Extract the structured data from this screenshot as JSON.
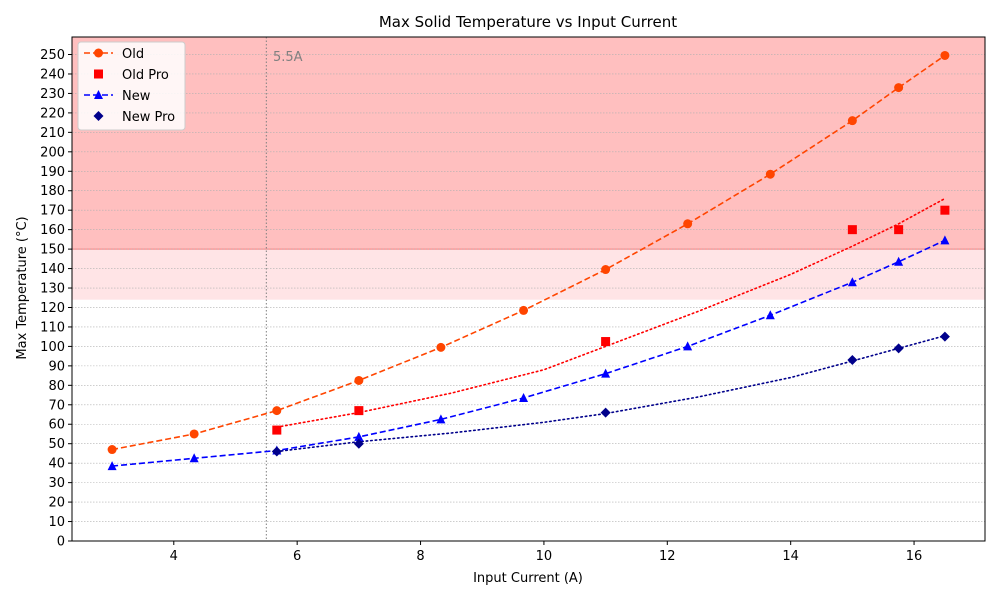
{
  "chart_data": {
    "type": "line",
    "title": "Max Solid Temperature vs Input Current",
    "xlabel": "Input Current (A)",
    "ylabel": "Max Temperature (°C)",
    "xlim": [
      2.35,
      17.15
    ],
    "ylim": [
      0,
      259
    ],
    "x_ticks": [
      4,
      6,
      8,
      10,
      12,
      14,
      16
    ],
    "y_ticks": [
      0,
      10,
      20,
      30,
      40,
      50,
      60,
      70,
      80,
      90,
      100,
      110,
      120,
      130,
      140,
      150,
      160,
      170,
      180,
      190,
      200,
      210,
      220,
      230,
      240,
      250
    ],
    "grid": "horizontal dotted",
    "legend_position": "top-left",
    "bands": [
      {
        "name": "critical-zone",
        "y_from": 150,
        "y_to": 259,
        "color": "#ffbfbf"
      },
      {
        "name": "warning-zone",
        "y_from": 124,
        "y_to": 150,
        "color": "#ffe4e6"
      }
    ],
    "vline": {
      "x": 5.5,
      "label": "5.5A",
      "color": "#808080"
    },
    "series": [
      {
        "name": "Old",
        "color": "#ff4500",
        "marker": "circle",
        "line": "dashed",
        "x": [
          3.0,
          4.33,
          5.67,
          7.0,
          8.33,
          9.67,
          11.0,
          12.33,
          13.67,
          15.0,
          15.75,
          16.5
        ],
        "y": [
          47,
          55,
          67,
          82.5,
          99.5,
          118.5,
          139.5,
          163,
          188.5,
          216,
          233,
          249.5
        ]
      },
      {
        "name": "Old Pro",
        "color": "#ff0000",
        "marker": "square",
        "line": "none",
        "x": [
          5.67,
          7.0,
          11.0,
          15.0,
          15.75,
          16.5
        ],
        "y": [
          57,
          67,
          102.5,
          160,
          160,
          170
        ]
      },
      {
        "name": "New",
        "color": "#0000ff",
        "marker": "triangle",
        "line": "dashed",
        "x": [
          3.0,
          4.33,
          5.67,
          7.0,
          8.33,
          9.67,
          11.0,
          12.33,
          13.67,
          15.0,
          15.75,
          16.5
        ],
        "y": [
          38.5,
          42.5,
          46.5,
          53.5,
          62.5,
          73.5,
          86,
          100,
          116,
          133,
          143.5,
          154.5
        ]
      },
      {
        "name": "New Pro",
        "color": "#00008b",
        "marker": "diamond",
        "line": "none",
        "x": [
          5.67,
          7.0,
          11.0,
          15.0,
          15.75,
          16.5
        ],
        "y": [
          46,
          50,
          66,
          93,
          99,
          105
        ]
      }
    ],
    "trendlines": [
      {
        "name": "Old Pro trend",
        "color": "#ff0000",
        "x": [
          5.67,
          7.0,
          8.5,
          10.0,
          11.0,
          12.5,
          14.0,
          15.0,
          15.75,
          16.5
        ],
        "y": [
          58.5,
          66,
          76,
          88,
          100,
          118,
          137,
          151.5,
          163,
          176
        ]
      },
      {
        "name": "New Pro trend",
        "color": "#00008b",
        "x": [
          5.67,
          7.0,
          8.5,
          10.0,
          11.0,
          12.5,
          14.0,
          15.0,
          15.75,
          16.5
        ],
        "y": [
          46,
          51,
          55.5,
          61,
          65.5,
          74,
          84,
          92.5,
          99,
          105.5
        ]
      }
    ]
  }
}
